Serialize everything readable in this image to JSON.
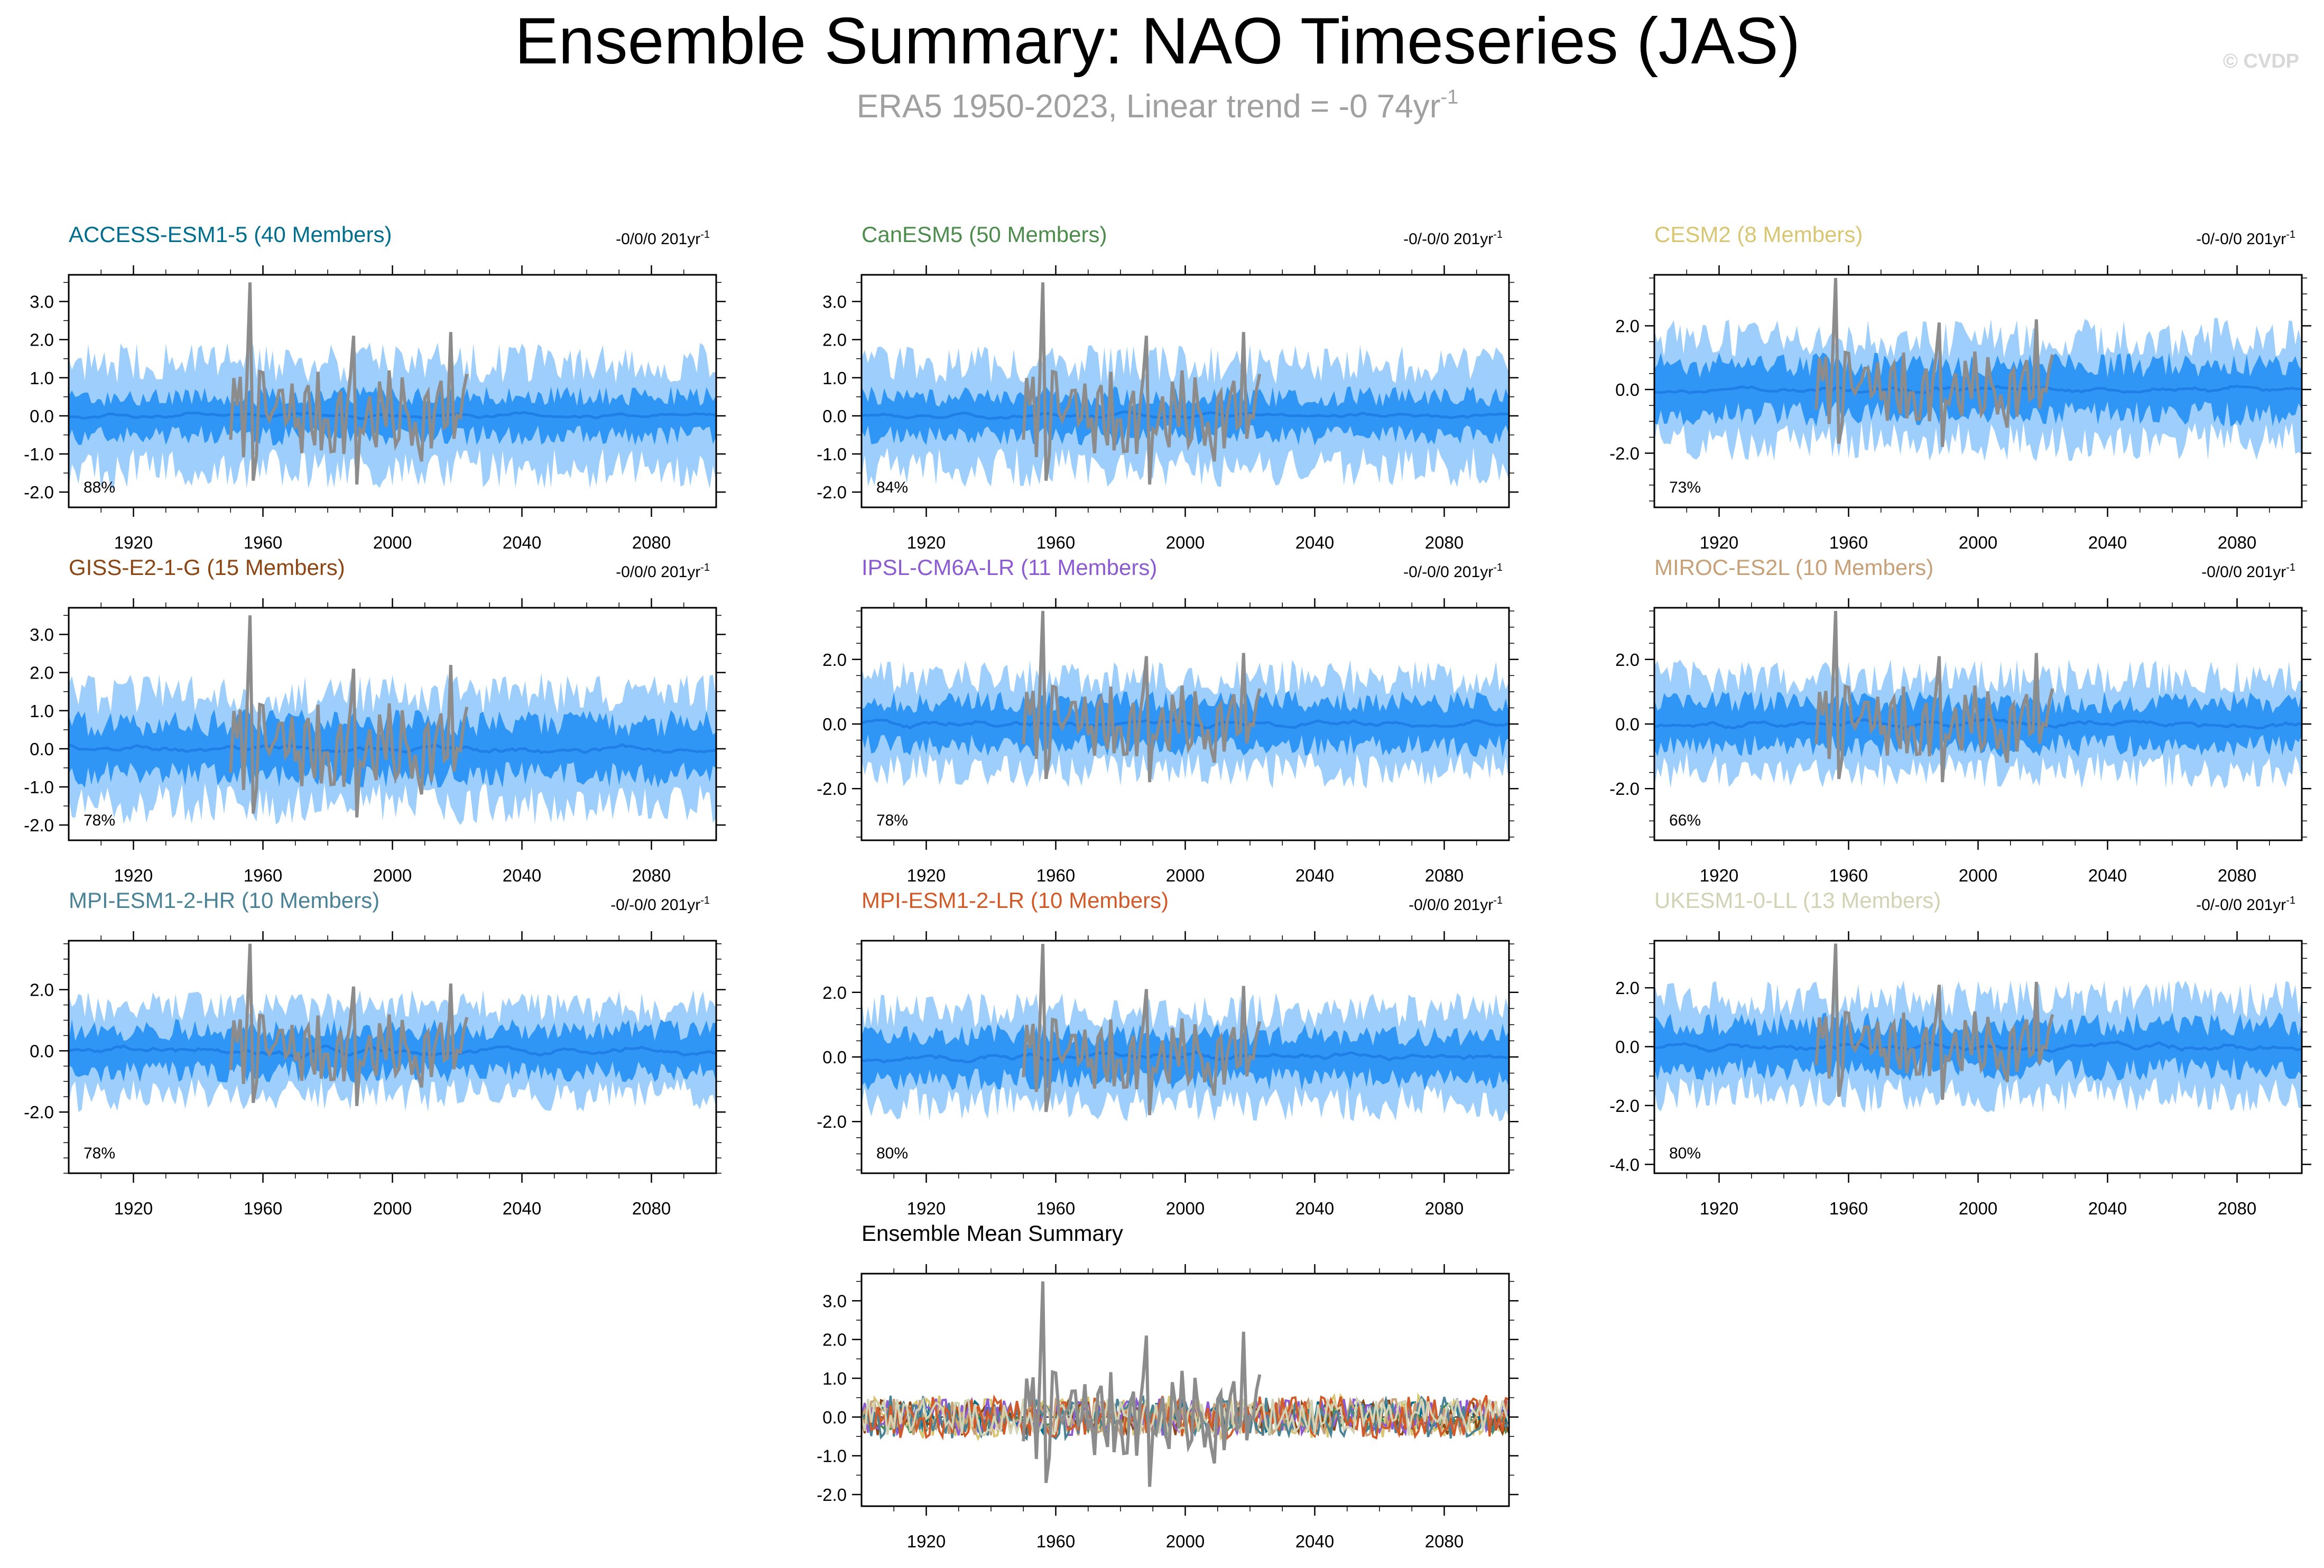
{
  "header": {
    "title": "Ensemble Summary: NAO Timeseries (JAS)",
    "subtitle": "ERA5 1950-2023, Linear trend = -0 74yr",
    "subtitle_sup": "-1",
    "credit": "© CVDP"
  },
  "colors": {
    "band_outer": "#9dcefc",
    "band_inner": "#2f96f5",
    "ens_mean": "#1f7fe6",
    "obs": "#8c8c8c"
  },
  "chart_data": [
    {
      "type": "area",
      "title": "ACCESS-ESM1-5 (40 Members)",
      "title_color": "#006e8c",
      "trend": "-0/0/0 201yr",
      "trend_sup": "-1",
      "percent": "88%",
      "x_range": [
        1900,
        2100
      ],
      "x_ticks": [
        "1920",
        "1960",
        "2000",
        "2040",
        "2080"
      ],
      "ylim": [
        -2.4,
        3.7
      ],
      "y_ticks": [
        "3.0",
        "2.0",
        "1.0",
        "0.0",
        "-1.0",
        "-2.0"
      ],
      "series": [
        {
          "name": "ensemble 10-90% range",
          "lower": -1.55,
          "upper": 1.55
        },
        {
          "name": "ensemble 25-75% range",
          "lower": -0.6,
          "upper": 0.6
        },
        {
          "name": "ensemble mean",
          "amplitude": 0.15
        },
        {
          "name": "ERA5 observed",
          "x_start": 1950,
          "x_end": 2023
        }
      ]
    },
    {
      "type": "area",
      "title": "CanESM5 (50 Members)",
      "title_color": "#4c8c4c",
      "trend": "-0/-0/0 201yr",
      "trend_sup": "-1",
      "percent": "84%",
      "x_range": [
        1900,
        2100
      ],
      "x_ticks": [
        "1920",
        "1960",
        "2000",
        "2040",
        "2080"
      ],
      "ylim": [
        -2.4,
        3.7
      ],
      "y_ticks": [
        "3.0",
        "2.0",
        "1.0",
        "0.0",
        "-1.0",
        "-2.0"
      ],
      "series": [
        {
          "name": "ensemble 10-90% range",
          "lower": -1.5,
          "upper": 1.5
        },
        {
          "name": "ensemble 25-75% range",
          "lower": -0.6,
          "upper": 0.6
        },
        {
          "name": "ensemble mean",
          "amplitude": 0.15
        },
        {
          "name": "ERA5 observed",
          "x_start": 1950,
          "x_end": 2023
        }
      ]
    },
    {
      "type": "area",
      "title": "CESM2 (8 Members)",
      "title_color": "#d9c673",
      "trend": "-0/-0/0 201yr",
      "trend_sup": "-1",
      "percent": "73%",
      "x_range": [
        1900,
        2100
      ],
      "x_ticks": [
        "1920",
        "1960",
        "2000",
        "2040",
        "2080"
      ],
      "ylim": [
        -3.7,
        3.6
      ],
      "y_ticks": [
        "2.0",
        "0.0",
        "-2.0"
      ],
      "series": [
        {
          "name": "ensemble 10-90% range",
          "lower": -1.8,
          "upper": 1.8
        },
        {
          "name": "ensemble 25-75% range",
          "lower": -0.9,
          "upper": 0.9
        },
        {
          "name": "ensemble mean",
          "amplitude": 0.25
        },
        {
          "name": "ERA5 observed",
          "x_start": 1950,
          "x_end": 2023
        }
      ]
    },
    {
      "type": "area",
      "title": "GISS-E2-1-G (15 Members)",
      "title_color": "#8c4614",
      "trend": "-0/0/0 201yr",
      "trend_sup": "-1",
      "percent": "78%",
      "x_range": [
        1900,
        2100
      ],
      "x_ticks": [
        "1920",
        "1960",
        "2000",
        "2040",
        "2080"
      ],
      "ylim": [
        -2.4,
        3.7
      ],
      "y_ticks": [
        "3.0",
        "2.0",
        "1.0",
        "0.0",
        "-1.0",
        "-2.0"
      ],
      "series": [
        {
          "name": "ensemble 10-90% range",
          "lower": -1.6,
          "upper": 1.6
        },
        {
          "name": "ensemble 25-75% range",
          "lower": -0.8,
          "upper": 0.8
        },
        {
          "name": "ensemble mean",
          "amplitude": 0.25
        },
        {
          "name": "ERA5 observed",
          "x_start": 1950,
          "x_end": 2023
        }
      ]
    },
    {
      "type": "area",
      "title": "IPSL-CM6A-LR (11 Members)",
      "title_color": "#8c5ad2",
      "trend": "-0/-0/0 201yr",
      "trend_sup": "-1",
      "percent": "78%",
      "x_range": [
        1900,
        2100
      ],
      "x_ticks": [
        "1920",
        "1960",
        "2000",
        "2040",
        "2080"
      ],
      "ylim": [
        -3.6,
        3.6
      ],
      "y_ticks": [
        "2.0",
        "0.0",
        "-2.0"
      ],
      "series": [
        {
          "name": "ensemble 10-90% range",
          "lower": -1.6,
          "upper": 1.6
        },
        {
          "name": "ensemble 25-75% range",
          "lower": -0.8,
          "upper": 0.8
        },
        {
          "name": "ensemble mean",
          "amplitude": 0.25
        },
        {
          "name": "ERA5 observed",
          "x_start": 1950,
          "x_end": 2023
        }
      ]
    },
    {
      "type": "area",
      "title": "MIROC-ES2L (10 Members)",
      "title_color": "#c8a078",
      "trend": "-0/0/0 201yr",
      "trend_sup": "-1",
      "percent": "66%",
      "x_range": [
        1900,
        2100
      ],
      "x_ticks": [
        "1920",
        "1960",
        "2000",
        "2040",
        "2080"
      ],
      "ylim": [
        -3.6,
        3.6
      ],
      "y_ticks": [
        "2.0",
        "0.0",
        "-2.0"
      ],
      "series": [
        {
          "name": "ensemble 10-90% range",
          "lower": -1.6,
          "upper": 1.6
        },
        {
          "name": "ensemble 25-75% range",
          "lower": -0.8,
          "upper": 0.8
        },
        {
          "name": "ensemble mean",
          "amplitude": 0.3
        },
        {
          "name": "ERA5 observed",
          "x_start": 1950,
          "x_end": 2023
        }
      ]
    },
    {
      "type": "area",
      "title": "MPI-ESM1-2-HR (10 Members)",
      "title_color": "#4a8296",
      "trend": "-0/-0/0 201yr",
      "trend_sup": "-1",
      "percent": "78%",
      "x_range": [
        1900,
        2100
      ],
      "x_ticks": [
        "1920",
        "1960",
        "2000",
        "2040",
        "2080"
      ],
      "ylim": [
        -4.0,
        3.6
      ],
      "y_ticks": [
        "2.0",
        "0.0",
        "-2.0"
      ],
      "series": [
        {
          "name": "ensemble 10-90% range",
          "lower": -1.6,
          "upper": 1.6
        },
        {
          "name": "ensemble 25-75% range",
          "lower": -0.8,
          "upper": 0.8
        },
        {
          "name": "ensemble mean",
          "amplitude": 0.3
        },
        {
          "name": "ERA5 observed",
          "x_start": 1950,
          "x_end": 2023
        }
      ]
    },
    {
      "type": "area",
      "title": "MPI-ESM1-2-LR (10 Members)",
      "title_color": "#d25a28",
      "trend": "-0/0/0 201yr",
      "trend_sup": "-1",
      "percent": "80%",
      "x_range": [
        1900,
        2100
      ],
      "x_ticks": [
        "1920",
        "1960",
        "2000",
        "2040",
        "2080"
      ],
      "ylim": [
        -3.6,
        3.6
      ],
      "y_ticks": [
        "2.0",
        "0.0",
        "-2.0"
      ],
      "series": [
        {
          "name": "ensemble 10-90% range",
          "lower": -1.6,
          "upper": 1.6
        },
        {
          "name": "ensemble 25-75% range",
          "lower": -0.8,
          "upper": 0.8
        },
        {
          "name": "ensemble mean",
          "amplitude": 0.3
        },
        {
          "name": "ERA5 observed",
          "x_start": 1950,
          "x_end": 2023
        }
      ]
    },
    {
      "type": "area",
      "title": "UKESM1-0-LL (13 Members)",
      "title_color": "#d2d2b4",
      "trend": "-0/-0/0 201yr",
      "trend_sup": "-1",
      "percent": "80%",
      "x_range": [
        1900,
        2100
      ],
      "x_ticks": [
        "1920",
        "1960",
        "2000",
        "2040",
        "2080"
      ],
      "ylim": [
        -4.3,
        3.6
      ],
      "y_ticks": [
        "2.0",
        "0.0",
        "-2.0",
        "-4.0"
      ],
      "series": [
        {
          "name": "ensemble 10-90% range",
          "lower": -1.8,
          "upper": 1.8
        },
        {
          "name": "ensemble 25-75% range",
          "lower": -0.9,
          "upper": 0.9
        },
        {
          "name": "ensemble mean",
          "amplitude": 0.3
        },
        {
          "name": "ERA5 observed",
          "x_start": 1950,
          "x_end": 2023
        }
      ]
    },
    {
      "type": "line",
      "title": "Ensemble Mean Summary",
      "title_color": "#000000",
      "x_range": [
        1900,
        2100
      ],
      "x_ticks": [
        "1920",
        "1960",
        "2000",
        "2040",
        "2080"
      ],
      "ylim": [
        -2.3,
        3.7
      ],
      "y_ticks": [
        "3.0",
        "2.0",
        "1.0",
        "0.0",
        "-1.0",
        "-2.0"
      ],
      "series": [
        {
          "name": "ACCESS-ESM1-5",
          "color": "#006e8c",
          "amplitude": 0.25
        },
        {
          "name": "CanESM5",
          "color": "#4c8c4c",
          "amplitude": 0.25
        },
        {
          "name": "CESM2",
          "color": "#d9c673",
          "amplitude": 0.35
        },
        {
          "name": "GISS-E2-1-G",
          "color": "#8c4614",
          "amplitude": 0.3
        },
        {
          "name": "IPSL-CM6A-LR",
          "color": "#8c5ad2",
          "amplitude": 0.3
        },
        {
          "name": "MIROC-ES2L",
          "color": "#c8a078",
          "amplitude": 0.3
        },
        {
          "name": "MPI-ESM1-2-HR",
          "color": "#4a8296",
          "amplitude": 0.35
        },
        {
          "name": "MPI-ESM1-2-LR",
          "color": "#d25a28",
          "amplitude": 0.35
        },
        {
          "name": "UKESM1-0-LL",
          "color": "#d2d2b4",
          "amplitude": 0.3
        },
        {
          "name": "ERA5 observed",
          "color": "#8c8c8c",
          "x_start": 1950,
          "x_end": 2023
        }
      ]
    }
  ]
}
